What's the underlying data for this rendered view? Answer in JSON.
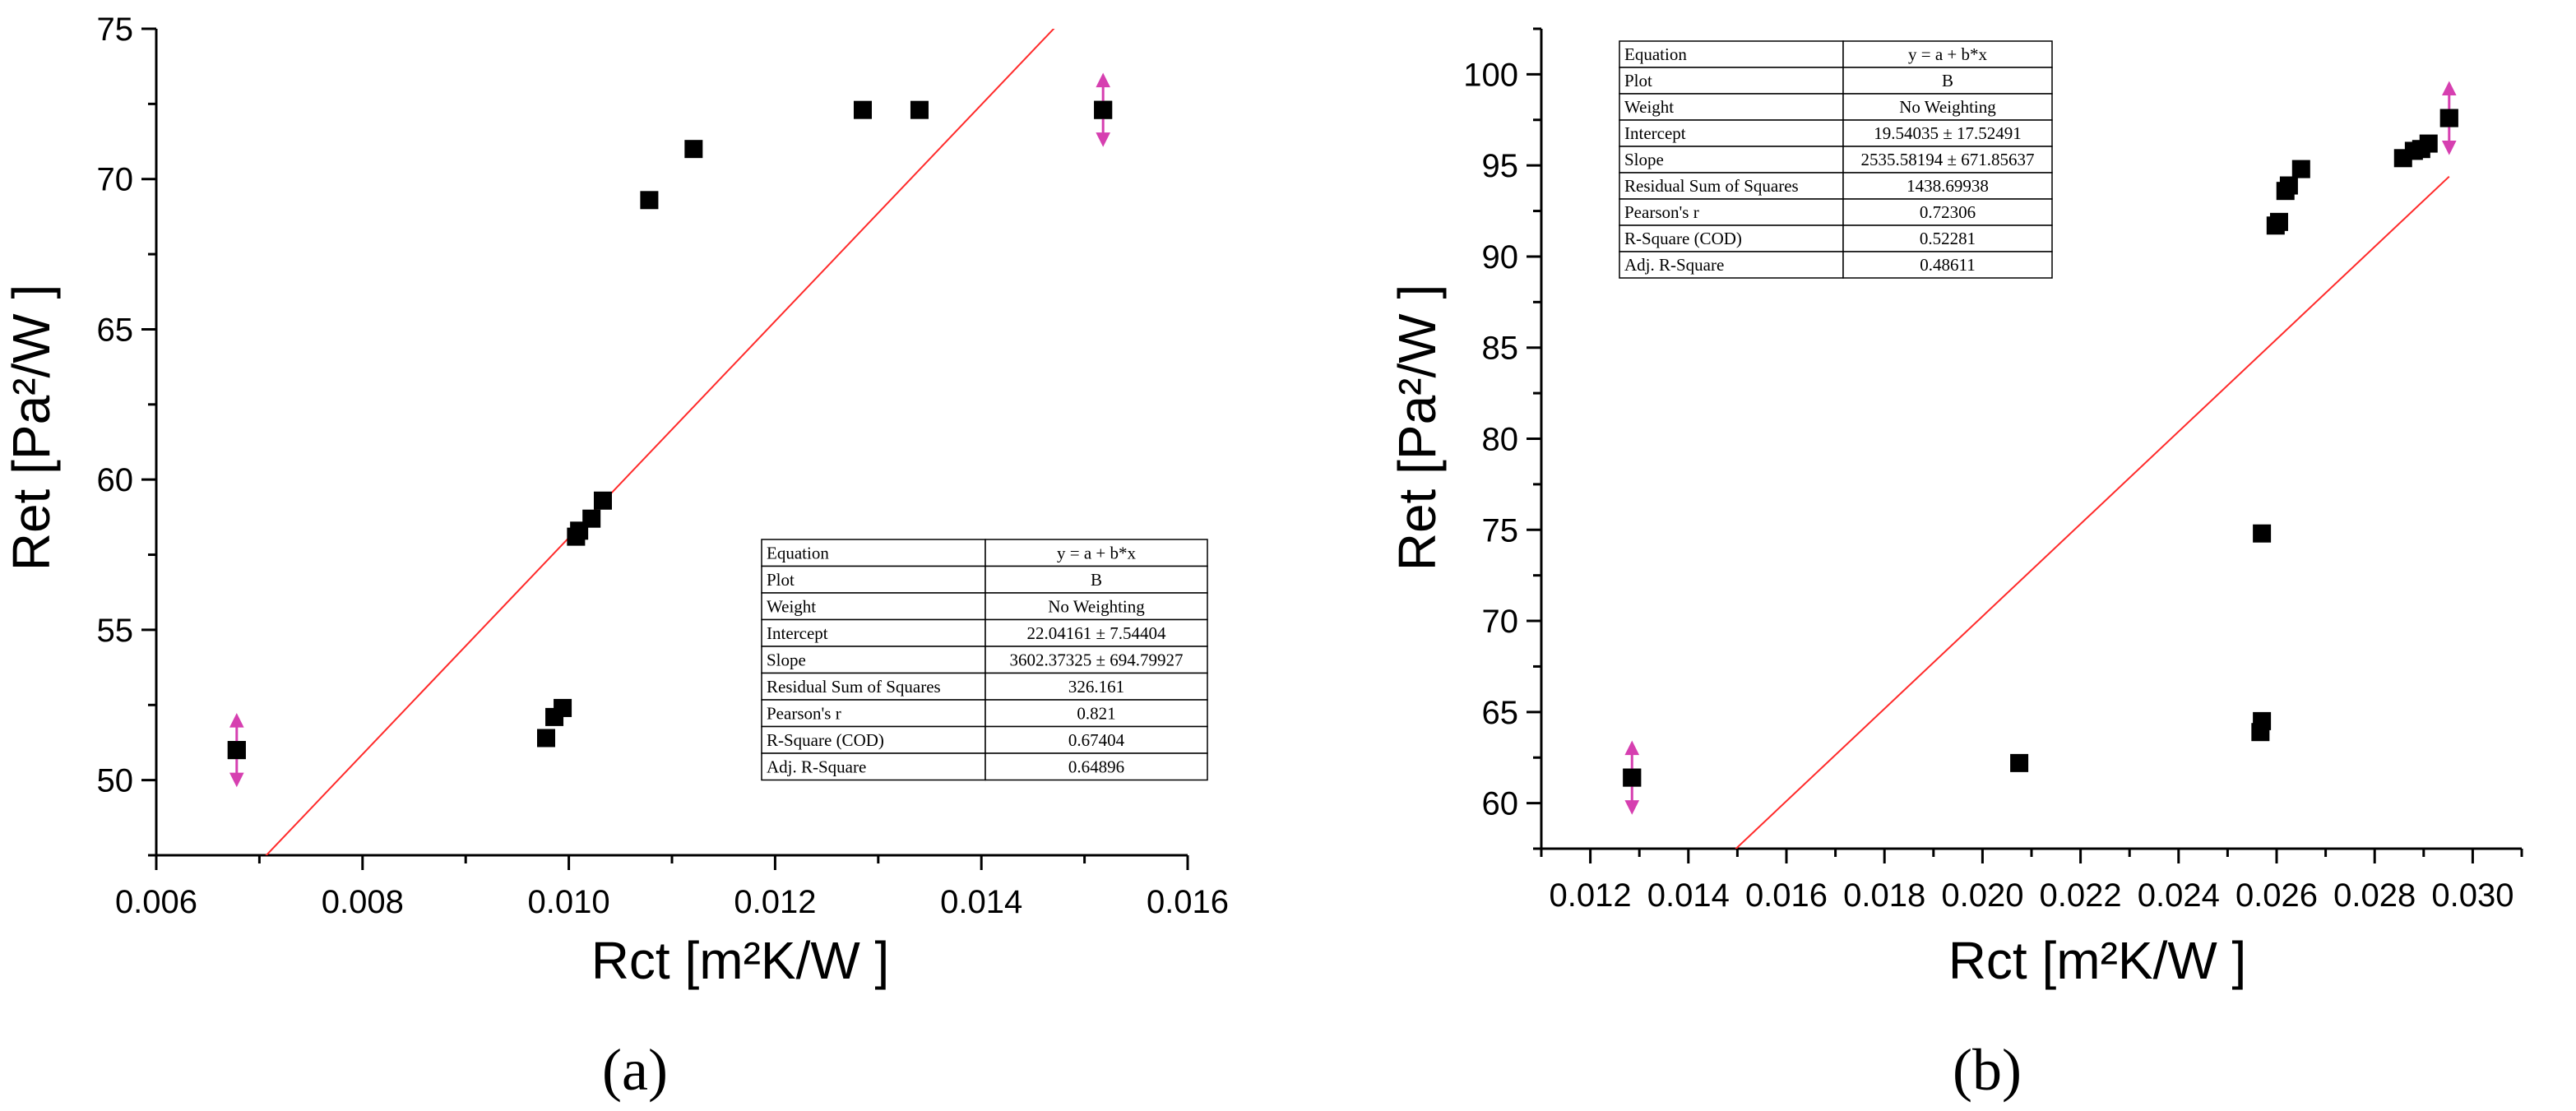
{
  "chart_data": [
    {
      "type": "scatter",
      "panel_label": "(a)",
      "xlabel": "Rct [m²K/W ]",
      "ylabel": "Ret [Pa²/W ]",
      "xlim": [
        0.006,
        0.016
      ],
      "ylim": [
        47.5,
        75
      ],
      "xticks": [
        "0.006",
        "0.008",
        "0.010",
        "0.012",
        "0.014",
        "0.016"
      ],
      "yticks": [
        "50",
        "55",
        "60",
        "65",
        "70",
        "75"
      ],
      "points": [
        {
          "x": 0.00678,
          "y": 51.0,
          "highlight": true
        },
        {
          "x": 0.00978,
          "y": 51.4
        },
        {
          "x": 0.00986,
          "y": 52.1
        },
        {
          "x": 0.00994,
          "y": 52.4
        },
        {
          "x": 0.01007,
          "y": 58.1
        },
        {
          "x": 0.0101,
          "y": 58.3
        },
        {
          "x": 0.01022,
          "y": 58.7
        },
        {
          "x": 0.01033,
          "y": 59.3
        },
        {
          "x": 0.01078,
          "y": 69.3
        },
        {
          "x": 0.01121,
          "y": 71.0
        },
        {
          "x": 0.01285,
          "y": 72.3
        },
        {
          "x": 0.0134,
          "y": 72.3
        },
        {
          "x": 0.01518,
          "y": 72.3,
          "highlight": true
        }
      ],
      "fit": {
        "intercept": 22.04161,
        "slope": 3602.37325
      },
      "stats_table": [
        [
          "Equation",
          "y = a + b*x"
        ],
        [
          "Plot",
          "B"
        ],
        [
          "Weight",
          "No Weighting"
        ],
        [
          "Intercept",
          "22.04161 ± 7.54404"
        ],
        [
          "Slope",
          "3602.37325 ± 694.79927"
        ],
        [
          "Residual Sum of Squares",
          "326.161"
        ],
        [
          "Pearson's r",
          "0.821"
        ],
        [
          "R-Square (COD)",
          "0.67404"
        ],
        [
          "Adj. R-Square",
          "0.64896"
        ]
      ]
    },
    {
      "type": "scatter",
      "panel_label": "(b)",
      "xlabel": "Rct [m²K/W ]",
      "ylabel": "Ret [Pa²/W ]",
      "xlim": [
        0.011,
        0.031
      ],
      "ylim": [
        57.5,
        102.5
      ],
      "xticks": [
        "0.012",
        "0.014",
        "0.016",
        "0.018",
        "0.020",
        "0.022",
        "0.024",
        "0.026",
        "0.028",
        "0.030"
      ],
      "yticks": [
        "60",
        "65",
        "70",
        "75",
        "80",
        "85",
        "90",
        "95",
        "100"
      ],
      "points": [
        {
          "x": 0.01285,
          "y": 61.4,
          "highlight": true
        },
        {
          "x": 0.02075,
          "y": 62.2
        },
        {
          "x": 0.02567,
          "y": 63.9
        },
        {
          "x": 0.0257,
          "y": 64.5
        },
        {
          "x": 0.0257,
          "y": 74.8
        },
        {
          "x": 0.02598,
          "y": 91.7
        },
        {
          "x": 0.02605,
          "y": 91.9
        },
        {
          "x": 0.02618,
          "y": 93.6
        },
        {
          "x": 0.02625,
          "y": 93.9
        },
        {
          "x": 0.0265,
          "y": 94.8
        },
        {
          "x": 0.02858,
          "y": 95.4
        },
        {
          "x": 0.0288,
          "y": 95.8
        },
        {
          "x": 0.02895,
          "y": 95.9
        },
        {
          "x": 0.0291,
          "y": 96.2
        },
        {
          "x": 0.02952,
          "y": 97.6,
          "highlight": true
        }
      ],
      "fit": {
        "intercept": 19.54035,
        "slope": 2535.58194
      },
      "stats_table": [
        [
          "Equation",
          "y = a + b*x"
        ],
        [
          "Plot",
          "B"
        ],
        [
          "Weight",
          "No Weighting"
        ],
        [
          "Intercept",
          "19.54035 ± 17.52491"
        ],
        [
          "Slope",
          "2535.58194 ± 671.85637"
        ],
        [
          "Residual Sum of Squares",
          "1438.69938"
        ],
        [
          "Pearson's r",
          "0.72306"
        ],
        [
          "R-Square (COD)",
          "0.52281"
        ],
        [
          "Adj. R-Square",
          "0.48611"
        ]
      ]
    }
  ]
}
